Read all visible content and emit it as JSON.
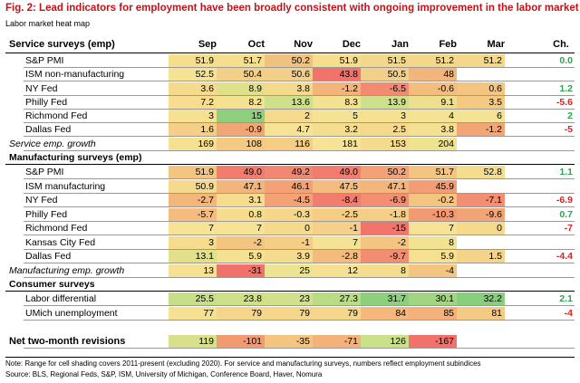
{
  "title": "Fig. 2: Lead indicators for employment have been broadly consistent with ongoing improvement in the labor market",
  "subtitle": "Labor market heat map",
  "months": [
    "Sep",
    "Oct",
    "Nov",
    "Dec",
    "Jan",
    "Feb",
    "Mar"
  ],
  "change_label": "Ch.",
  "sections": {
    "service": "Service surveys (emp)",
    "manufacturing": "Manufacturing surveys (emp)",
    "consumer": "Consumer surveys"
  },
  "rows": {
    "svc_spmi": {
      "label": "S&P PMI",
      "values": [
        "51.9",
        "51.7",
        "50.2",
        "51.9",
        "51.5",
        "51.2",
        "51.2"
      ],
      "colors": [
        "#f5df8f",
        "#f5df8f",
        "#f0c27f",
        "#f5df8f",
        "#f3d88b",
        "#f3d88b",
        "#f3d88b"
      ],
      "change": "0.0",
      "change_color": "#2ea34a"
    },
    "svc_ism": {
      "label": "ISM non-manufacturing",
      "values": [
        "52.5",
        "50.4",
        "50.6",
        "43.8",
        "50.5",
        "48",
        ""
      ],
      "colors": [
        "#f6e394",
        "#f3d08a",
        "#f3d08a",
        "#f2736b",
        "#f3d08a",
        "#f2b57b",
        ""
      ],
      "change": "",
      "change_color": "#2ea34a"
    },
    "svc_ny": {
      "label": "NY Fed",
      "values": [
        "3.6",
        "8.9",
        "3.8",
        "-1.2",
        "-6.5",
        "-0.6",
        "0.6"
      ],
      "colors": [
        "#f5d98c",
        "#e0e08a",
        "#f5d98c",
        "#f3b47b",
        "#f28b71",
        "#f3bd7e",
        "#f4c581"
      ],
      "change": "1.2",
      "change_color": "#2ea34a"
    },
    "svc_philly": {
      "label": "Philly Fed",
      "values": [
        "7.2",
        "8.2",
        "13.6",
        "8.3",
        "13.9",
        "9.1",
        "3.5"
      ],
      "colors": [
        "#f6dd8f",
        "#f5e192",
        "#cfe08a",
        "#f5e192",
        "#cfe08a",
        "#eddf8e",
        "#f4c982"
      ],
      "change": "-5.6",
      "change_color": "#e0201b"
    },
    "svc_rich": {
      "label": "Richmond Fed",
      "values": [
        "3",
        "15",
        "2",
        "5",
        "3",
        "4",
        "6"
      ],
      "colors": [
        "#f6e092",
        "#8ecf7e",
        "#f5d98c",
        "#f5e395",
        "#f6e092",
        "#f5e395",
        "#f5e395"
      ],
      "change": "2",
      "change_color": "#2ea34a"
    },
    "svc_dallas": {
      "label": "Dallas Fed",
      "values": [
        "1.6",
        "-0.9",
        "4.7",
        "3.2",
        "2.5",
        "3.8",
        "-1.2"
      ],
      "colors": [
        "#f5cf88",
        "#f2a676",
        "#f6e395",
        "#f5dd8f",
        "#f5d98c",
        "#f6e092",
        "#f2a676"
      ],
      "change": "-5",
      "change_color": "#e0201b"
    },
    "svc_growth": {
      "label": "Service emp. growth",
      "values": [
        "169",
        "108",
        "116",
        "181",
        "153",
        "204",
        ""
      ],
      "colors": [
        "#f6e092",
        "#f4c982",
        "#f5cd85",
        "#f6e395",
        "#f5db8d",
        "#eee38f",
        ""
      ],
      "change": "",
      "change_color": "#2ea34a"
    },
    "mfg_spmi": {
      "label": "S&P PMI",
      "values": [
        "51.9",
        "49.0",
        "49.2",
        "49.0",
        "50.2",
        "51.7",
        "52.8"
      ],
      "colors": [
        "#f4c581",
        "#f27c6d",
        "#f28871",
        "#f27c6d",
        "#f3a175",
        "#f4c581",
        "#f5dd8f"
      ],
      "change": "1.1",
      "change_color": "#2ea34a"
    },
    "mfg_ism": {
      "label": "ISM manufacturing",
      "values": [
        "50.9",
        "47.1",
        "46.1",
        "47.5",
        "47.1",
        "45.9",
        ""
      ],
      "colors": [
        "#f5d98c",
        "#f4b57c",
        "#f3a175",
        "#f4bd7f",
        "#f4b57c",
        "#f39d74",
        ""
      ],
      "change": "",
      "change_color": "#2ea34a"
    },
    "mfg_ny": {
      "label": "NY Fed",
      "values": [
        "-2.7",
        "3.1",
        "-4.5",
        "-8.4",
        "-6.9",
        "-0.2",
        "-7.1"
      ],
      "colors": [
        "#f3b77c",
        "#f6dc8e",
        "#f3a175",
        "#f27c6d",
        "#f28e71",
        "#f4c581",
        "#f28e71"
      ],
      "change": "-6.9",
      "change_color": "#e0201b"
    },
    "mfg_philly": {
      "label": "Philly Fed",
      "values": [
        "-5.7",
        "0.8",
        "-0.3",
        "-2.5",
        "-1.8",
        "-10.3",
        "-9.6"
      ],
      "colors": [
        "#f4bd7f",
        "#f6dc8e",
        "#f6d68b",
        "#f5cd85",
        "#f5cf88",
        "#f29b73",
        "#f3a476"
      ],
      "change": "0.7",
      "change_color": "#2ea34a"
    },
    "mfg_rich": {
      "label": "Richmond Fed",
      "values": [
        "7",
        "7",
        "0",
        "-1",
        "-15",
        "7",
        "0"
      ],
      "colors": [
        "#f6e395",
        "#f6e395",
        "#f5d98c",
        "#f5d08a",
        "#f2746b",
        "#f6e395",
        "#f5d98c"
      ],
      "change": "-7",
      "change_color": "#e0201b"
    },
    "mfg_kc": {
      "label": "Kansas City Fed",
      "values": [
        "3",
        "-2",
        "-1",
        "7",
        "-2",
        "8",
        ""
      ],
      "colors": [
        "#f6dc8e",
        "#f4c581",
        "#f5cd85",
        "#f5e395",
        "#f4c581",
        "#f1e392",
        ""
      ],
      "change": "",
      "change_color": "#2ea34a"
    },
    "mfg_dallas": {
      "label": "Dallas Fed",
      "values": [
        "13.1",
        "5.9",
        "3.9",
        "-2.8",
        "-9.7",
        "5.9",
        "1.5"
      ],
      "colors": [
        "#e3e08c",
        "#f6e092",
        "#f5db8d",
        "#f4bb7e",
        "#f38d71",
        "#f6e092",
        "#f5d48a"
      ],
      "change": "-4.4",
      "change_color": "#e0201b"
    },
    "mfg_growth": {
      "label": "Manufacturing emp. growth",
      "values": [
        "13",
        "-31",
        "25",
        "12",
        "8",
        "-4",
        ""
      ],
      "colors": [
        "#f6e092",
        "#f2716a",
        "#eee391",
        "#f6e092",
        "#f5dd8f",
        "#f4c581",
        ""
      ],
      "change": "",
      "change_color": "#2ea34a"
    },
    "con_labor": {
      "label": "Labor differential",
      "values": [
        "25.5",
        "23.8",
        "23",
        "27.3",
        "31.7",
        "30.1",
        "32.2"
      ],
      "colors": [
        "#c6df88",
        "#cfe08a",
        "#d2e08b",
        "#bbdc86",
        "#8ecf7e",
        "#a2d582",
        "#89ce7d"
      ],
      "change": "2.1",
      "change_color": "#2ea34a"
    },
    "con_umich": {
      "label": "UMich unemployment",
      "values": [
        "77",
        "79",
        "79",
        "79",
        "84",
        "85",
        "81"
      ],
      "colors": [
        "#f6e092",
        "#f5d68b",
        "#f5d68b",
        "#f5d68b",
        "#f4b77c",
        "#f4b17a",
        "#f5ca84"
      ],
      "change": "-4",
      "change_color": "#e0201b"
    },
    "net_rev": {
      "label": "Net two-month revisions",
      "values": [
        "119",
        "-101",
        "-35",
        "-71",
        "126",
        "-167",
        ""
      ],
      "colors": [
        "#d9e08b",
        "#f29b73",
        "#f3c581",
        "#f4b17a",
        "#cbe08a",
        "#f2716a",
        ""
      ],
      "change": "",
      "change_color": "#2ea34a"
    }
  },
  "note": "Note: Range for cell shading covers 2011-present (excluding 2020). For service and manufacturing surveys, numbers reflect employment subindices",
  "source": "Source: BLS, Regional Feds, S&P, ISM, University of Michigan, Conference Board, Haver, Nomura"
}
